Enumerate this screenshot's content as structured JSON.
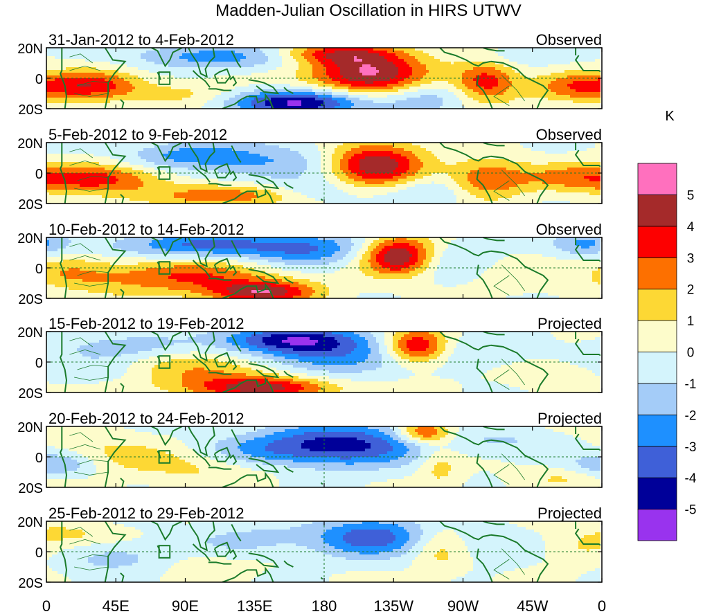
{
  "chart_data": {
    "type": "heatmap",
    "title": "Madden-Julian Oscillation in HIRS UTWV",
    "units": "K",
    "x_ticks": [
      "0",
      "45E",
      "90E",
      "135E",
      "180",
      "135W",
      "90W",
      "45W",
      "0"
    ],
    "y_ticks": [
      "20N",
      "0",
      "20S"
    ],
    "xlim": [
      0,
      360
    ],
    "ylim": [
      -20,
      20
    ],
    "colorbar": {
      "levels": [
        "-5",
        "-4",
        "-3",
        "-2",
        "-1",
        "0",
        "1",
        "2",
        "3",
        "4",
        "5"
      ],
      "colors": [
        "#9933ee",
        "#000099",
        "#3f60d8",
        "#1e90ff",
        "#a4ccf8",
        "#d4f4fc",
        "#fdfccb",
        "#fdd834",
        "#fd7000",
        "#fd0000",
        "#a52a2a",
        "#ff70be"
      ]
    },
    "panels": [
      {
        "date_range": "31-Jan-2012 to 4-Feb-2012",
        "status": "Observed",
        "features": [
          {
            "lon": 30,
            "lat": -5,
            "amp": 3.4,
            "sx": 22,
            "sy": 7
          },
          {
            "lon": 90,
            "lat": -10,
            "amp": 1.2,
            "sx": 25,
            "sy": 6
          },
          {
            "lon": 208,
            "lat": 3,
            "amp": 5.2,
            "sx": 28,
            "sy": 10
          },
          {
            "lon": 185,
            "lat": 16,
            "amp": 3.2,
            "sx": 30,
            "sy": 5
          },
          {
            "lon": 285,
            "lat": -2,
            "amp": 3.6,
            "sx": 14,
            "sy": 9
          },
          {
            "lon": 345,
            "lat": -6,
            "amp": 2.8,
            "sx": 22,
            "sy": 7
          },
          {
            "lon": 165,
            "lat": -16,
            "amp": -5.4,
            "sx": 30,
            "sy": 6
          },
          {
            "lon": 130,
            "lat": 14,
            "amp": -2.2,
            "sx": 40,
            "sy": 6
          },
          {
            "lon": 85,
            "lat": 15,
            "amp": -1.0,
            "sx": 25,
            "sy": 5
          },
          {
            "lon": 245,
            "lat": -12,
            "amp": -1.6,
            "sx": 20,
            "sy": 8
          },
          {
            "lon": 310,
            "lat": 15,
            "amp": -1.0,
            "sx": 20,
            "sy": 5
          }
        ]
      },
      {
        "date_range": "5-Feb-2012 to 9-Feb-2012",
        "status": "Observed",
        "features": [
          {
            "lon": 35,
            "lat": -4,
            "amp": 3.4,
            "sx": 30,
            "sy": 7
          },
          {
            "lon": 115,
            "lat": -15,
            "amp": 3.0,
            "sx": 30,
            "sy": 5
          },
          {
            "lon": 213,
            "lat": 6,
            "amp": 5.3,
            "sx": 22,
            "sy": 10
          },
          {
            "lon": 285,
            "lat": -4,
            "amp": 3.0,
            "sx": 18,
            "sy": 9
          },
          {
            "lon": 340,
            "lat": -3,
            "amp": 2.0,
            "sx": 25,
            "sy": 7
          },
          {
            "lon": 140,
            "lat": 8,
            "amp": -2.0,
            "sx": 45,
            "sy": 9
          },
          {
            "lon": 85,
            "lat": 12,
            "amp": -1.6,
            "sx": 25,
            "sy": 6
          },
          {
            "lon": 250,
            "lat": -12,
            "amp": -1.4,
            "sx": 20,
            "sy": 7
          },
          {
            "lon": 175,
            "lat": -12,
            "amp": -1.0,
            "sx": 20,
            "sy": 6
          }
        ]
      },
      {
        "date_range": "10-Feb-2012 to 14-Feb-2012",
        "status": "Observed",
        "features": [
          {
            "lon": 90,
            "lat": -6,
            "amp": 3.0,
            "sx": 45,
            "sy": 8
          },
          {
            "lon": 140,
            "lat": -16,
            "amp": 4.2,
            "sx": 25,
            "sy": 5
          },
          {
            "lon": 228,
            "lat": 8,
            "amp": 5.2,
            "sx": 16,
            "sy": 9
          },
          {
            "lon": 15,
            "lat": -3,
            "amp": 1.4,
            "sx": 20,
            "sy": 8
          },
          {
            "lon": 110,
            "lat": 15,
            "amp": -3.2,
            "sx": 50,
            "sy": 6
          },
          {
            "lon": 170,
            "lat": 10,
            "amp": -2.0,
            "sx": 25,
            "sy": 8
          },
          {
            "lon": 265,
            "lat": 4,
            "amp": -1.2,
            "sx": 20,
            "sy": 10
          },
          {
            "lon": 350,
            "lat": 16,
            "amp": -2.2,
            "sx": 15,
            "sy": 6
          },
          {
            "lon": 300,
            "lat": -5,
            "amp": 0.8,
            "sx": 25,
            "sy": 8
          }
        ]
      },
      {
        "date_range": "15-Feb-2012 to 19-Feb-2012",
        "status": "Projected",
        "features": [
          {
            "lon": 240,
            "lat": 10,
            "amp": 4.3,
            "sx": 14,
            "sy": 8
          },
          {
            "lon": 140,
            "lat": -17,
            "amp": 4.0,
            "sx": 35,
            "sy": 5
          },
          {
            "lon": 100,
            "lat": -6,
            "amp": 2.0,
            "sx": 40,
            "sy": 8
          },
          {
            "lon": 155,
            "lat": 15,
            "amp": -4.3,
            "sx": 30,
            "sy": 6
          },
          {
            "lon": 185,
            "lat": 4,
            "amp": -3.0,
            "sx": 30,
            "sy": 9
          },
          {
            "lon": 50,
            "lat": 10,
            "amp": -1.6,
            "sx": 30,
            "sy": 6
          },
          {
            "lon": 30,
            "lat": -6,
            "amp": -1.2,
            "sx": 30,
            "sy": 6
          },
          {
            "lon": 280,
            "lat": 6,
            "amp": -1.0,
            "sx": 25,
            "sy": 8
          },
          {
            "lon": 330,
            "lat": -8,
            "amp": 1.0,
            "sx": 25,
            "sy": 6
          }
        ]
      },
      {
        "date_range": "20-Feb-2012 to 24-Feb-2012",
        "status": "Projected",
        "features": [
          {
            "lon": 245,
            "lat": 16,
            "amp": 3.6,
            "sx": 12,
            "sy": 5
          },
          {
            "lon": 195,
            "lat": 8,
            "amp": -4.2,
            "sx": 35,
            "sy": 10
          },
          {
            "lon": 140,
            "lat": 4,
            "amp": -2.0,
            "sx": 30,
            "sy": 8
          },
          {
            "lon": 5,
            "lat": -5,
            "amp": -2.2,
            "sx": 18,
            "sy": 6
          },
          {
            "lon": 100,
            "lat": -6,
            "amp": 1.3,
            "sx": 40,
            "sy": 8
          },
          {
            "lon": 40,
            "lat": 4,
            "amp": 1.0,
            "sx": 30,
            "sy": 8
          },
          {
            "lon": 255,
            "lat": -6,
            "amp": 1.5,
            "sx": 10,
            "sy": 10
          },
          {
            "lon": 300,
            "lat": 10,
            "amp": -1.0,
            "sx": 25,
            "sy": 6
          },
          {
            "lon": 335,
            "lat": -14,
            "amp": 1.0,
            "sx": 20,
            "sy": 5
          }
        ]
      },
      {
        "date_range": "25-Feb-2012 to 29-Feb-2012",
        "status": "Projected",
        "features": [
          {
            "lon": 210,
            "lat": 10,
            "amp": -3.8,
            "sx": 25,
            "sy": 9
          },
          {
            "lon": 125,
            "lat": 6,
            "amp": -1.6,
            "sx": 30,
            "sy": 8
          },
          {
            "lon": 50,
            "lat": -4,
            "amp": -1.8,
            "sx": 30,
            "sy": 7
          },
          {
            "lon": 300,
            "lat": 4,
            "amp": -1.0,
            "sx": 25,
            "sy": 8
          },
          {
            "lon": 255,
            "lat": 2,
            "amp": 1.4,
            "sx": 12,
            "sy": 12
          },
          {
            "lon": 95,
            "lat": -4,
            "amp": 1.2,
            "sx": 30,
            "sy": 8
          },
          {
            "lon": 345,
            "lat": 2,
            "amp": 1.2,
            "sx": 25,
            "sy": 8
          },
          {
            "lon": 20,
            "lat": 12,
            "amp": 1.0,
            "sx": 25,
            "sy": 5
          }
        ]
      }
    ]
  }
}
